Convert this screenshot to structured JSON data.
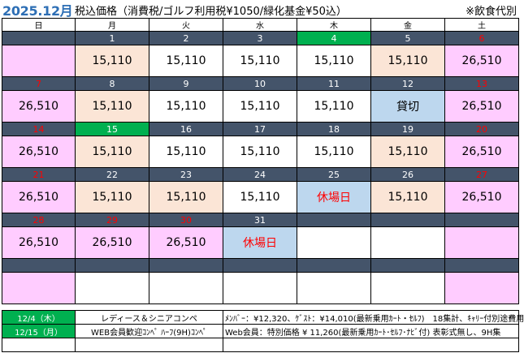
{
  "header": {
    "year_month": "2025.12月",
    "price_note": "税込価格（消費税/ゴルフ利用税¥1050/緑化基金¥50込）",
    "drink_note": "※飲食代別"
  },
  "weekdays": [
    "日",
    "月",
    "火",
    "水",
    "木",
    "金",
    "土"
  ],
  "weeks": [
    {
      "nums": [
        "",
        "1",
        "2",
        "3",
        "4",
        "5",
        "6"
      ],
      "num_styles": [
        "",
        "",
        "",
        "",
        "today",
        "",
        "sat-hol"
      ],
      "cells": [
        {
          "t": "",
          "c": "pink"
        },
        {
          "t": "15,110",
          "c": "peach"
        },
        {
          "t": "15,110",
          "c": "white"
        },
        {
          "t": "15,110",
          "c": "white"
        },
        {
          "t": "15,110",
          "c": "white"
        },
        {
          "t": "15,110",
          "c": "peach"
        },
        {
          "t": "26,510",
          "c": "pink"
        }
      ]
    },
    {
      "nums": [
        "7",
        "8",
        "9",
        "10",
        "11",
        "12",
        "13"
      ],
      "num_styles": [
        "sun",
        "",
        "",
        "",
        "",
        "",
        "sat-hol"
      ],
      "cells": [
        {
          "t": "26,510",
          "c": "pink"
        },
        {
          "t": "15,110",
          "c": "peach"
        },
        {
          "t": "15,110",
          "c": "white"
        },
        {
          "t": "15,110",
          "c": "white"
        },
        {
          "t": "15,110",
          "c": "white"
        },
        {
          "t": "貸切",
          "c": "blue"
        },
        {
          "t": "26,510",
          "c": "pink"
        }
      ]
    },
    {
      "nums": [
        "14",
        "15",
        "16",
        "17",
        "18",
        "19",
        "20"
      ],
      "num_styles": [
        "sun",
        "today",
        "",
        "",
        "",
        "",
        "sat-hol"
      ],
      "cells": [
        {
          "t": "26,510",
          "c": "pink"
        },
        {
          "t": "15,110",
          "c": "peach"
        },
        {
          "t": "15,110",
          "c": "white"
        },
        {
          "t": "15,110",
          "c": "white"
        },
        {
          "t": "15,110",
          "c": "white"
        },
        {
          "t": "15,110",
          "c": "peach"
        },
        {
          "t": "26,510",
          "c": "pink"
        }
      ]
    },
    {
      "nums": [
        "21",
        "22",
        "23",
        "24",
        "25",
        "26",
        "27"
      ],
      "num_styles": [
        "sun",
        "",
        "",
        "",
        "",
        "",
        "sat-hol"
      ],
      "cells": [
        {
          "t": "26,510",
          "c": "pink"
        },
        {
          "t": "15,110",
          "c": "peach"
        },
        {
          "t": "15,110",
          "c": "peach"
        },
        {
          "t": "15,110",
          "c": "white"
        },
        {
          "t": "休場日",
          "c": "blue red-text"
        },
        {
          "t": "15,110",
          "c": "peach"
        },
        {
          "t": "26,510",
          "c": "pink"
        }
      ]
    },
    {
      "nums": [
        "28",
        "29",
        "30",
        "31",
        "",
        "",
        ""
      ],
      "num_styles": [
        "sun",
        "sun",
        "sun",
        "",
        "",
        "",
        ""
      ],
      "cells": [
        {
          "t": "26,510",
          "c": "pink"
        },
        {
          "t": "26,510",
          "c": "pink"
        },
        {
          "t": "26,510",
          "c": "pink"
        },
        {
          "t": "休場日",
          "c": "blue red-text"
        },
        {
          "t": "",
          "c": "white"
        },
        {
          "t": "",
          "c": "white"
        },
        {
          "t": "",
          "c": "pink"
        }
      ]
    },
    {
      "nums": [
        "",
        "",
        "",
        "",
        "",
        "",
        ""
      ],
      "num_styles": [
        "",
        "",
        "",
        "",
        "",
        "",
        ""
      ],
      "cells": [
        {
          "t": "",
          "c": "pink"
        },
        {
          "t": "",
          "c": "white"
        },
        {
          "t": "",
          "c": "white"
        },
        {
          "t": "",
          "c": "white"
        },
        {
          "t": "",
          "c": "white"
        },
        {
          "t": "",
          "c": "white"
        },
        {
          "t": "",
          "c": "pink"
        }
      ]
    }
  ],
  "events": [
    {
      "date": "12/4（木）",
      "name": "レディース＆シニアコンペ",
      "price": "ﾒﾝﾊﾞｰ：¥12,320、ｹﾞｽﾄ：¥14,010(最新乗用ｶｰﾄ・ｾﾙﾌ)　18集計、ｷｬﾘｰ付別途費用"
    },
    {
      "date": "12/15（月）",
      "name": "WEB会員歓迎ｺﾝﾍﾟ ﾊｰﾌ(9H)ｺﾝﾍﾟ",
      "price": "Web会員：特別価格 ¥ 11,260(最新乗用ｶｰﾄ･ｾﾙﾌ･ﾅﾋﾞ付) 表彰式無し、9H集"
    },
    {
      "date": "",
      "name": "",
      "price": ""
    }
  ],
  "colors": {
    "header_year": "#2e6fb5",
    "date_row": "#44546a",
    "today": "#00b050",
    "weekend_holiday": "#ffccff",
    "monday_friday": "#fbe5d6",
    "closed_blue": "#bdd7ee"
  }
}
